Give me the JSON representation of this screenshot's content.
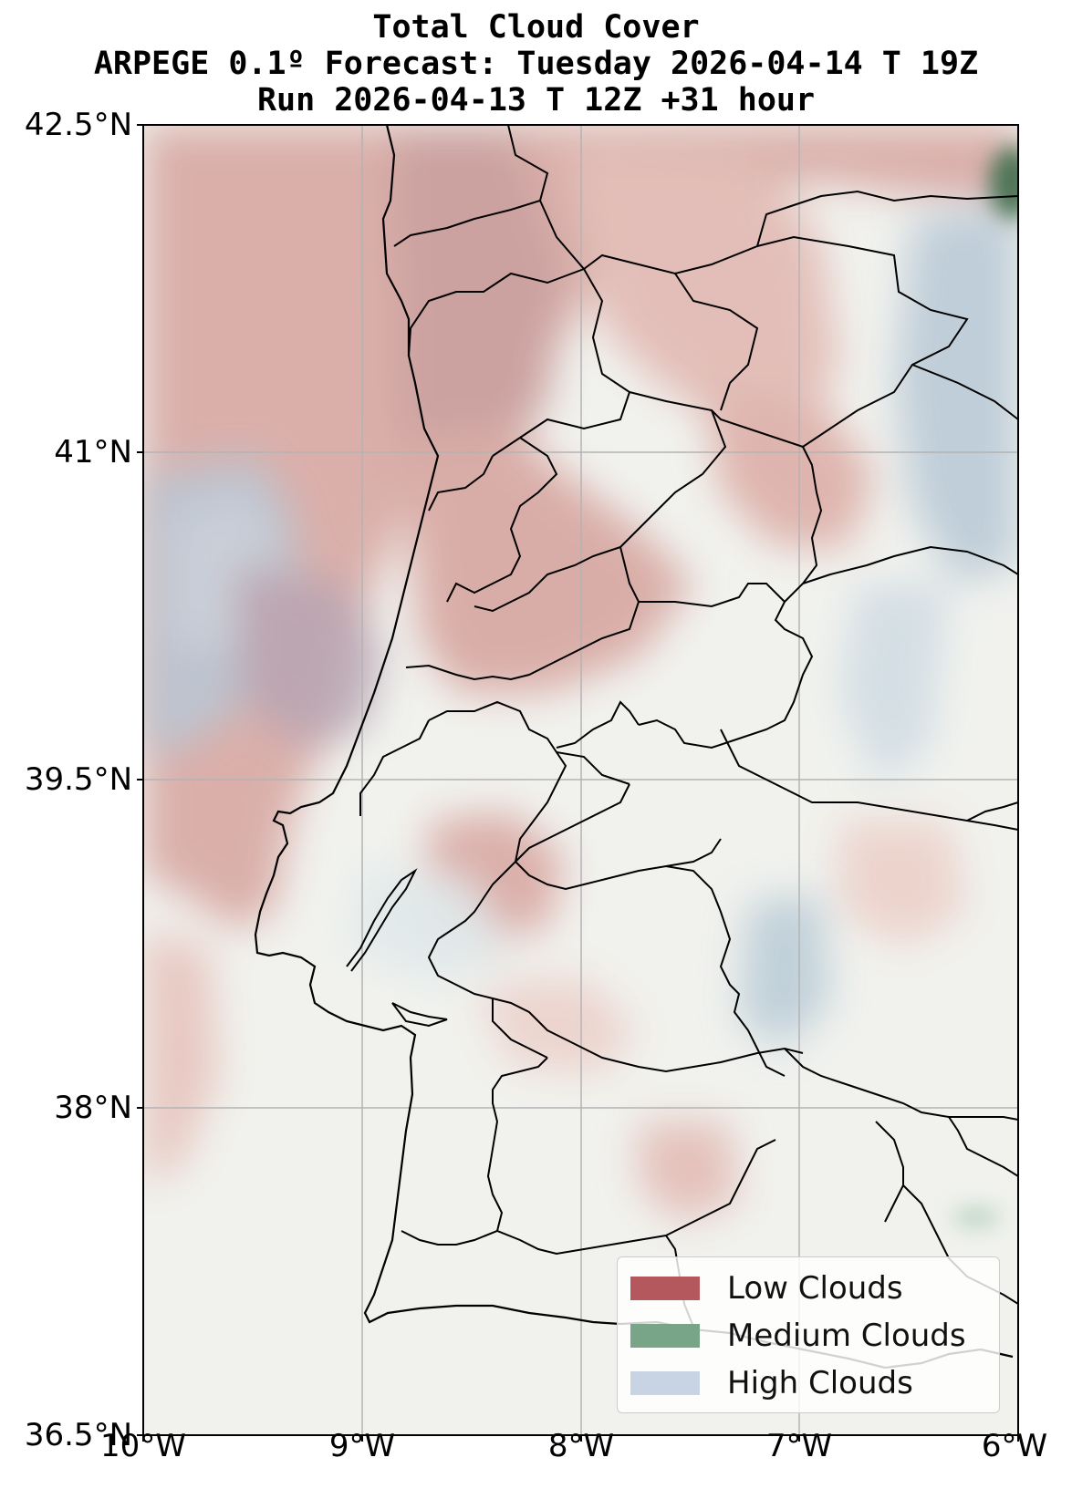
{
  "title": {
    "line1": "Total Cloud Cover",
    "line2": "ARPEGE 0.1º Forecast: Tuesday 2026-04-14 T 19Z",
    "line3": "Run 2026-04-13 T 12Z +31 hour"
  },
  "axes": {
    "lat_ticks": [
      "42.5°N",
      "41°N",
      "39.5°N",
      "38°N",
      "36.5°N"
    ],
    "lon_ticks": [
      "10°W",
      "9°W",
      "8°W",
      "7°W",
      "6°W"
    ],
    "lat_range": [
      36.5,
      42.5
    ],
    "lon_range": [
      -10,
      -6
    ],
    "grid": true
  },
  "legend": {
    "placement": "lower-right",
    "items": [
      {
        "label": "Low Clouds",
        "color": "#b5585e"
      },
      {
        "label": "Medium Clouds",
        "color": "#78a588"
      },
      {
        "label": "High Clouds",
        "color": "#c8d4e3"
      }
    ]
  },
  "colors": {
    "land_background": "#f1f2ee",
    "low_cloud": "#c98a86",
    "medium_cloud": "#3f6b4a",
    "high_cloud": "#a9c0d2",
    "grid": "#b0b0b0",
    "border": "#000000"
  }
}
